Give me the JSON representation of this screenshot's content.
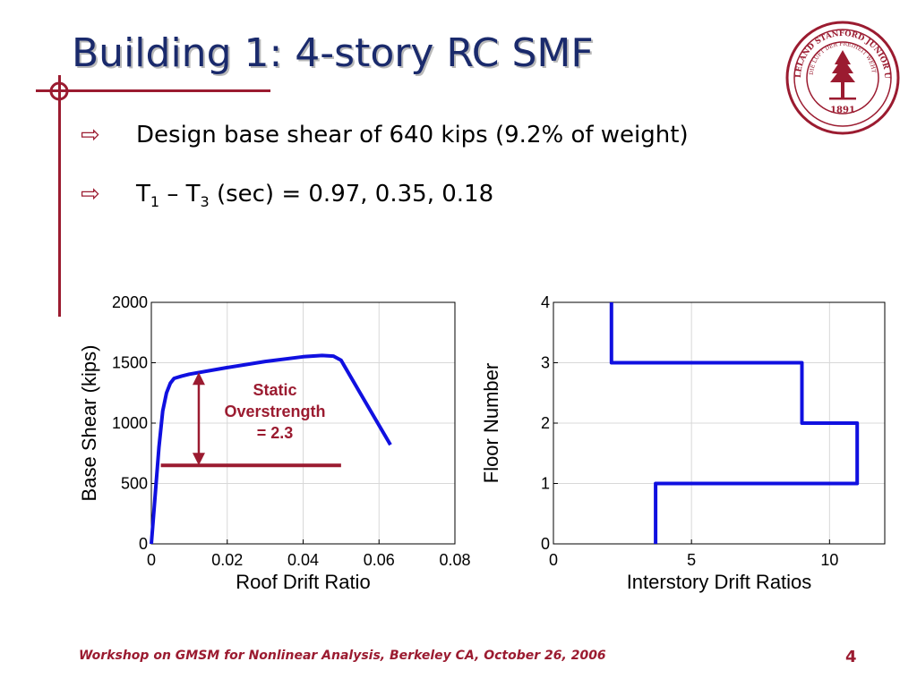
{
  "slide": {
    "title": "Building 1: 4-story RC SMF",
    "bullets": [
      {
        "text": "Design base shear of 640 kips (9.2% of weight)"
      },
      {
        "prefix": "T",
        "sub1": "1",
        "middle": " – T",
        "sub2": "3",
        "suffix": " (sec) = 0.97, 0.35, 0.18"
      }
    ],
    "footer": "Workshop on GMSM for Nonlinear Analysis, Berkeley CA, October 26, 2006",
    "page_number": "4",
    "colors": {
      "accent": "#9b1b30",
      "title": "#1a2a6c",
      "series": "#1010e0"
    },
    "seal": {
      "top_text": "LELAND STANFORD JUNIOR UNIVERSITY",
      "motto": "DIE LUFT DER FREIHEIT WEHT",
      "year": "1891",
      "icon": "stanford-tree-icon"
    }
  },
  "chart_data": [
    {
      "type": "line",
      "xlabel": "Roof Drift Ratio",
      "ylabel": "Base Shear (kips)",
      "xlim": [
        0,
        0.08
      ],
      "ylim": [
        0,
        2000
      ],
      "xticks": [
        "0",
        "0.02",
        "0.04",
        "0.06",
        "0.08"
      ],
      "yticks": [
        "0",
        "500",
        "1000",
        "1500",
        "2000"
      ],
      "grid": true,
      "series": [
        {
          "x": [
            0,
            0.002,
            0.003,
            0.004,
            0.005,
            0.006,
            0.008,
            0.01,
            0.02,
            0.03,
            0.04,
            0.045,
            0.048,
            0.05,
            0.055,
            0.063
          ],
          "y": [
            0,
            800,
            1100,
            1250,
            1330,
            1370,
            1390,
            1405,
            1460,
            1510,
            1550,
            1560,
            1555,
            1520,
            1250,
            820
          ]
        }
      ],
      "reference_line": {
        "x": [
          0.0025,
          0.05
        ],
        "y": [
          650,
          650
        ]
      },
      "annotation": {
        "lines": [
          "Static",
          "Overstrength",
          "= 2.3"
        ],
        "arrow_x": 0.0125,
        "arrow_from": 650,
        "arrow_to": 1420
      }
    },
    {
      "type": "line",
      "xlabel": "Interstory Drift Ratios",
      "ylabel": "Floor Number",
      "xlim": [
        0,
        12
      ],
      "ylim": [
        0,
        4
      ],
      "xticks": [
        "0",
        "5",
        "10"
      ],
      "yticks": [
        "0",
        "1",
        "2",
        "3",
        "4"
      ],
      "grid": true,
      "series": [
        {
          "x": [
            3.7,
            3.7,
            11,
            11,
            9,
            9,
            2.1,
            2.1
          ],
          "y": [
            0,
            1,
            1,
            2,
            2,
            3,
            3,
            4
          ]
        }
      ]
    }
  ]
}
